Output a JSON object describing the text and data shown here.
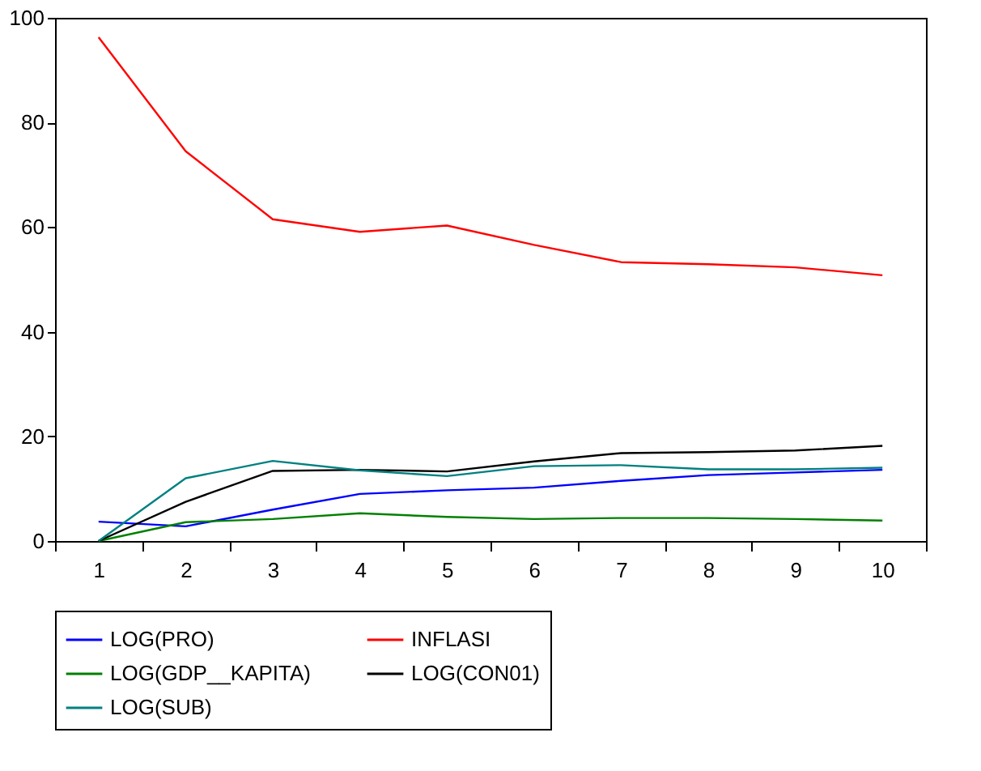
{
  "chart_data": {
    "type": "line",
    "categories": [
      "1",
      "2",
      "3",
      "4",
      "5",
      "6",
      "7",
      "8",
      "9",
      "10"
    ],
    "ylim": [
      0,
      100
    ],
    "yticks": [
      0,
      20,
      40,
      60,
      80,
      100
    ],
    "grid": false,
    "legend": "bottom",
    "line_style": "solid",
    "series": [
      {
        "name": "LOG(PRO)",
        "color": "#0000ff",
        "values": [
          3.7,
          2.8,
          6.0,
          9.0,
          9.7,
          10.2,
          11.5,
          12.6,
          13.1,
          13.6
        ]
      },
      {
        "name": "INFLASI",
        "color": "#ff0000",
        "values": [
          96.3,
          74.5,
          61.5,
          59.1,
          60.3,
          56.6,
          53.3,
          52.9,
          52.3,
          50.8
        ]
      },
      {
        "name": "LOG(GDP__KAPITA)",
        "color": "#008000",
        "values": [
          0,
          3.6,
          4.2,
          5.3,
          4.6,
          4.2,
          4.4,
          4.4,
          4.2,
          3.9
        ]
      },
      {
        "name": "LOG(CON01)",
        "color": "#000000",
        "values": [
          0,
          7.5,
          13.4,
          13.6,
          13.3,
          15.2,
          16.8,
          17.0,
          17.3,
          18.2
        ]
      },
      {
        "name": "LOG(SUB)",
        "color": "#008080",
        "values": [
          0,
          12.0,
          15.3,
          13.5,
          12.4,
          14.3,
          14.5,
          13.7,
          13.7,
          14.0
        ]
      }
    ]
  }
}
